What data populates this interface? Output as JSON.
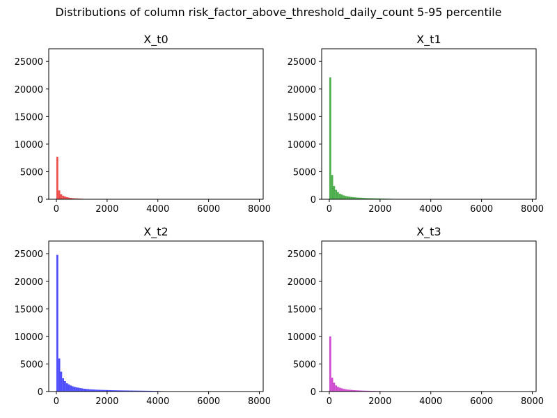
{
  "figure": {
    "title": "Distributions of column risk_factor_above_threshold_daily_count 5-95 percentile"
  },
  "chart_data": [
    {
      "type": "bar",
      "title": "X_t0",
      "color": "#ee4444",
      "xlim": [
        -300,
        8150
      ],
      "ylim": [
        0,
        27300
      ],
      "xticks": [
        0,
        2000,
        4000,
        6000,
        8000
      ],
      "yticks": [
        0,
        5000,
        10000,
        15000,
        20000,
        25000
      ],
      "bin_width": 76,
      "bin_start": 0,
      "values": [
        7700,
        1600,
        900,
        650,
        500,
        380,
        300,
        250,
        200,
        170,
        150,
        130,
        110,
        90,
        60
      ]
    },
    {
      "type": "bar",
      "title": "X_t1",
      "color": "#44aa44",
      "xlim": [
        -300,
        8150
      ],
      "ylim": [
        0,
        27300
      ],
      "xticks": [
        0,
        2000,
        4000,
        6000,
        8000
      ],
      "yticks": [
        0,
        5000,
        10000,
        15000,
        20000,
        25000
      ],
      "bin_width": 76,
      "bin_start": 0,
      "values": [
        22100,
        4400,
        2400,
        1700,
        1300,
        1000,
        850,
        700,
        600,
        520,
        460,
        420,
        380,
        340,
        310,
        290,
        270,
        250,
        230,
        210,
        200,
        190,
        180,
        170,
        160,
        150,
        140,
        130,
        120,
        110,
        100,
        90,
        80,
        70,
        60,
        50
      ]
    },
    {
      "type": "bar",
      "title": "X_t2",
      "color": "#4444ff",
      "xlim": [
        -300,
        8150
      ],
      "ylim": [
        0,
        27300
      ],
      "xticks": [
        0,
        2000,
        4000,
        6000,
        8000
      ],
      "yticks": [
        0,
        5000,
        10000,
        15000,
        20000,
        25000
      ],
      "bin_width": 76,
      "bin_start": 0,
      "values": [
        24800,
        6000,
        3600,
        2400,
        1900,
        1500,
        1300,
        1100,
        950,
        850,
        750,
        700,
        620,
        560,
        510,
        470,
        440,
        400,
        380,
        360,
        340,
        320,
        310,
        300,
        290,
        280,
        270,
        260,
        250,
        240,
        230,
        220,
        215,
        210,
        205,
        200,
        195,
        190,
        185,
        180,
        175,
        170,
        165,
        160,
        155,
        150,
        145,
        140,
        135,
        130,
        120,
        110,
        100,
        90,
        80,
        70,
        0,
        0,
        0,
        0,
        0,
        0,
        0,
        0,
        0,
        0
      ]
    },
    {
      "type": "bar",
      "title": "X_t3",
      "color": "#cc44cc",
      "xlim": [
        -300,
        8150
      ],
      "ylim": [
        0,
        27300
      ],
      "xticks": [
        0,
        2000,
        4000,
        6000,
        8000
      ],
      "yticks": [
        0,
        5000,
        10000,
        15000,
        20000,
        25000
      ],
      "bin_width": 76,
      "bin_start": 0,
      "values": [
        10000,
        2500,
        1600,
        1100,
        850,
        700,
        580,
        480,
        410,
        360,
        320,
        290,
        260,
        240,
        220,
        200,
        185,
        170,
        160,
        150,
        140,
        130,
        120,
        110,
        100,
        90,
        80,
        70,
        60,
        50
      ]
    }
  ]
}
